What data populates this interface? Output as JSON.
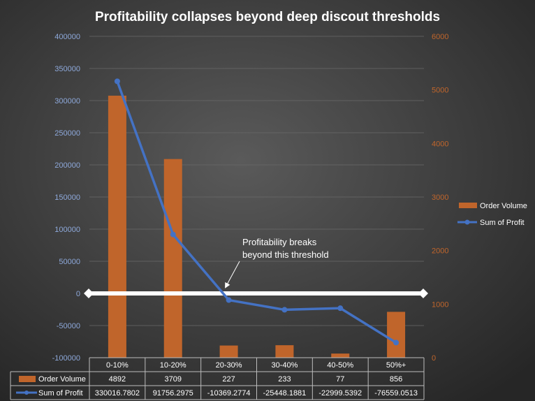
{
  "chart_data": {
    "type": "bar+line",
    "title": "Profitability collapses beyond deep discout thresholds",
    "categories": [
      "0-10%",
      "10-20%",
      "20-30%",
      "30-40%",
      "40-50%",
      "50%+"
    ],
    "series": [
      {
        "name": "Order Volume",
        "type": "bar",
        "axis": "right",
        "color": "#C0652B",
        "values": [
          4892,
          3709,
          227,
          233,
          77,
          856
        ],
        "display": [
          "4892",
          "3709",
          "227",
          "233",
          "77",
          "856"
        ]
      },
      {
        "name": "Sum of Profit",
        "type": "line",
        "axis": "left",
        "color": "#4472C4",
        "values": [
          330016.7802,
          91756.2975,
          -10369.2774,
          -25448.1881,
          -22999.5392,
          -76559.0513
        ],
        "display": [
          "330016.7802",
          "91756.2975",
          "-10369.2774",
          "-25448.1881",
          "-22999.5392",
          "-76559.0513"
        ]
      }
    ],
    "left_axis": {
      "range": [
        -100000,
        400000
      ],
      "ticks": [
        "-100000",
        "-50000",
        "0",
        "50000",
        "100000",
        "150000",
        "200000",
        "250000",
        "300000",
        "350000",
        "400000"
      ],
      "color": "#8EA9DB"
    },
    "right_axis": {
      "range": [
        0,
        6000
      ],
      "ticks": [
        "0",
        "1000",
        "2000",
        "3000",
        "4000",
        "5000",
        "6000"
      ],
      "color": "#C0652B"
    },
    "grid": true,
    "legend": "right",
    "data_table": true,
    "reference_line": {
      "value": 0,
      "color": "#FFFFFF"
    },
    "annotation": {
      "lines": [
        "Profitability breaks",
        "beyond this threshold"
      ]
    }
  }
}
